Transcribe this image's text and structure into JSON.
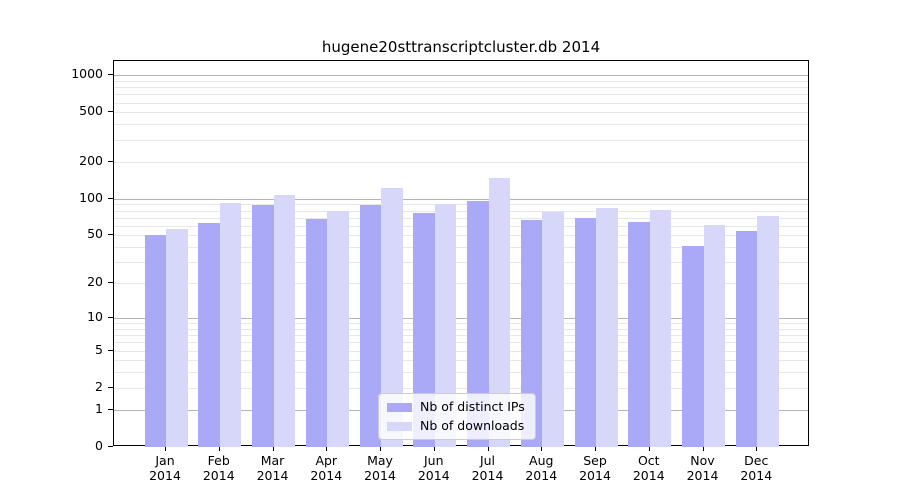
{
  "title": "hugene20sttranscriptcluster.db 2014",
  "chart_data": {
    "type": "bar",
    "title": "hugene20sttranscriptcluster.db 2014",
    "categories": [
      "Jan 2014",
      "Feb 2014",
      "Mar 2014",
      "Apr 2014",
      "May 2014",
      "Jun 2014",
      "Jul 2014",
      "Aug 2014",
      "Sep 2014",
      "Oct 2014",
      "Nov 2014",
      "Dec 2014"
    ],
    "category_month_labels": [
      "Jan",
      "Feb",
      "Mar",
      "Apr",
      "May",
      "Jun",
      "Jul",
      "Aug",
      "Sep",
      "Oct",
      "Nov",
      "Dec"
    ],
    "category_year_label": "2014",
    "series": [
      {
        "name": "Nb of distinct IPs",
        "color": "#a9a9f7",
        "values": [
          50,
          63,
          89,
          68,
          89,
          76,
          95,
          67,
          70,
          65,
          41,
          54
        ]
      },
      {
        "name": "Nb of downloads",
        "color": "#d7d7f9",
        "values": [
          57,
          93,
          107,
          80,
          123,
          91,
          147,
          78,
          84,
          81,
          61,
          72
        ]
      }
    ],
    "yscale": "log1p",
    "yticks": [
      0,
      1,
      2,
      5,
      10,
      20,
      50,
      100,
      200,
      500,
      1000
    ],
    "ylim": [
      0,
      1300
    ],
    "xlabel": "",
    "ylabel": "",
    "grid": true,
    "gridline_major_color": "#b3b3b3",
    "gridline_minor_color": "#e7e7e7",
    "legend_position": "lower-center"
  }
}
